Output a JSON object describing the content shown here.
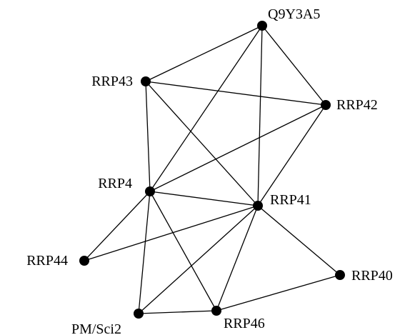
{
  "graph": {
    "nodes": [
      {
        "id": "Q9Y3A5",
        "label": "Q9Y3A5"
      },
      {
        "id": "RRP43",
        "label": "RRP43"
      },
      {
        "id": "RRP42",
        "label": "RRP42"
      },
      {
        "id": "RRP4",
        "label": "RRP4"
      },
      {
        "id": "RRP41",
        "label": "RRP41"
      },
      {
        "id": "RRP44",
        "label": "RRP44"
      },
      {
        "id": "RRP40",
        "label": "RRP40"
      },
      {
        "id": "PM/Sci2",
        "label": "PM/Sci2"
      },
      {
        "id": "RRP46",
        "label": "RRP46"
      }
    ],
    "edges": [
      [
        "Q9Y3A5",
        "RRP43"
      ],
      [
        "Q9Y3A5",
        "RRP42"
      ],
      [
        "Q9Y3A5",
        "RRP4"
      ],
      [
        "Q9Y3A5",
        "RRP41"
      ],
      [
        "RRP43",
        "RRP42"
      ],
      [
        "RRP43",
        "RRP4"
      ],
      [
        "RRP43",
        "RRP41"
      ],
      [
        "RRP42",
        "RRP4"
      ],
      [
        "RRP42",
        "RRP41"
      ],
      [
        "RRP4",
        "RRP41"
      ],
      [
        "RRP4",
        "RRP44"
      ],
      [
        "RRP4",
        "PM/Sci2"
      ],
      [
        "RRP4",
        "RRP46"
      ],
      [
        "RRP41",
        "RRP44"
      ],
      [
        "RRP41",
        "RRP40"
      ],
      [
        "RRP41",
        "PM/Sci2"
      ],
      [
        "RRP41",
        "RRP46"
      ],
      [
        "PM/Sci2",
        "RRP46"
      ],
      [
        "RRP46",
        "RRP40"
      ]
    ]
  }
}
